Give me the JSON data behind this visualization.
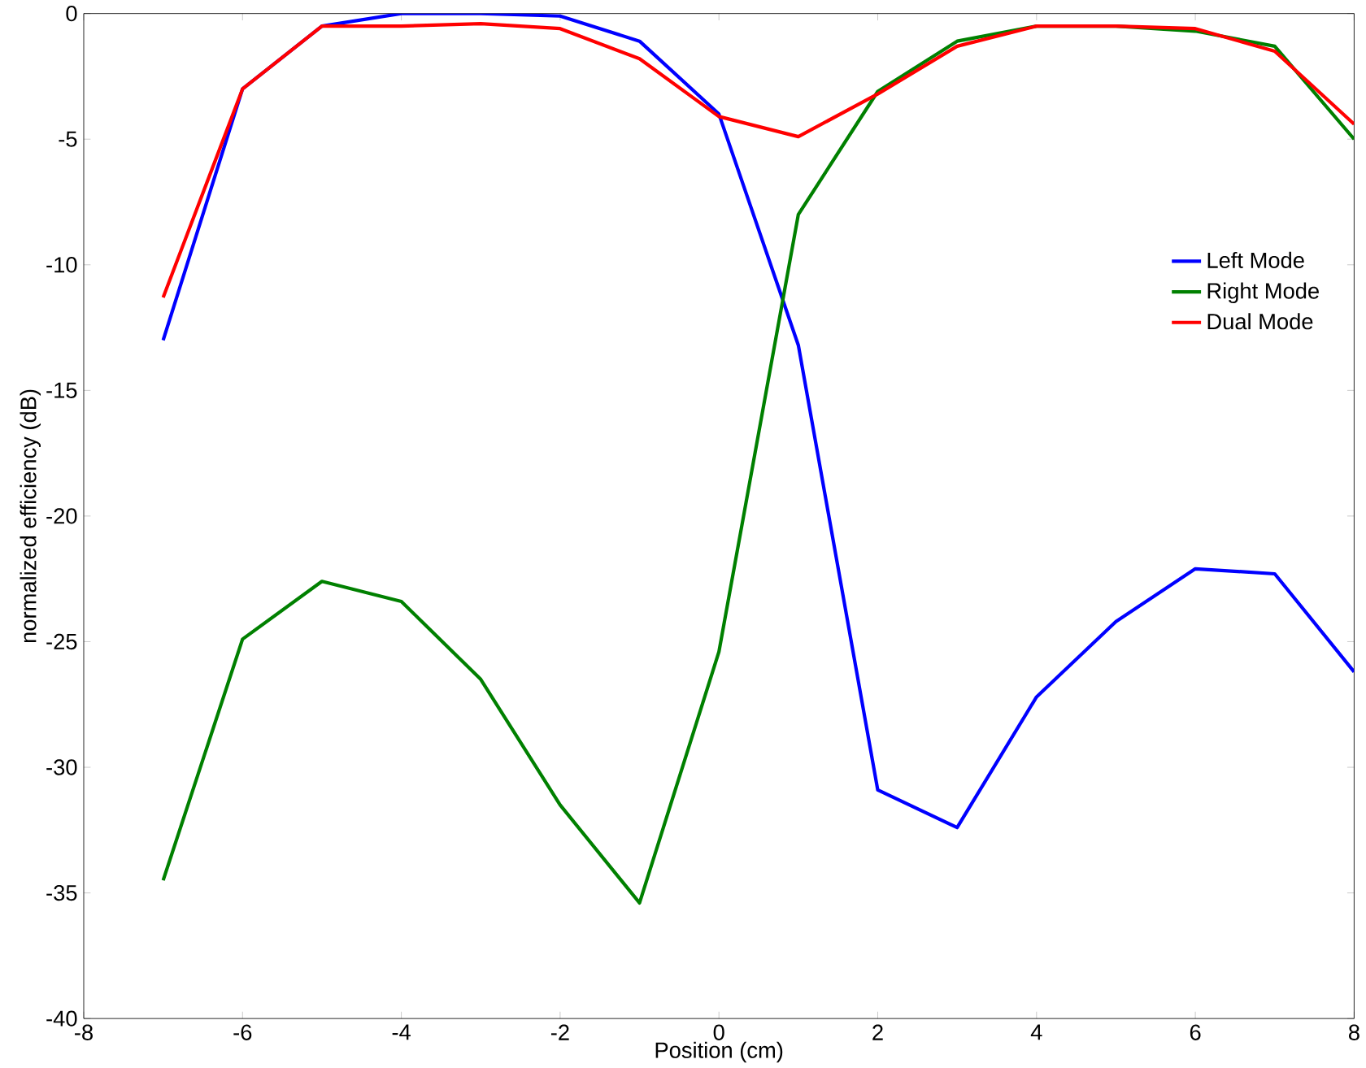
{
  "chart_data": {
    "type": "line",
    "xlabel": "Position (cm)",
    "ylabel": "normalized efficiency (dB)",
    "x": [
      -7,
      -6,
      -5,
      -4,
      -3,
      -2,
      -1,
      0,
      1,
      2,
      3,
      4,
      5,
      6,
      7,
      8
    ],
    "series": [
      {
        "name": "Left Mode",
        "color": "#0000ff",
        "values": [
          -13.0,
          -3.0,
          -0.5,
          0,
          0,
          -0.1,
          -1.1,
          -4.0,
          -13.2,
          -30.9,
          -32.4,
          -27.2,
          -24.2,
          -22.1,
          -22.3,
          -26.2
        ]
      },
      {
        "name": "Right Mode",
        "color": "#008000",
        "values": [
          -34.5,
          -24.9,
          -22.6,
          -23.4,
          -26.5,
          -31.5,
          -35.4,
          -25.4,
          -8.0,
          -3.1,
          -1.1,
          -0.5,
          -0.5,
          -0.7,
          -1.3,
          -5.0
        ]
      },
      {
        "name": "Dual Mode",
        "color": "#ff0000",
        "values": [
          -11.3,
          -3.0,
          -0.5,
          -0.5,
          -0.4,
          -0.6,
          -1.8,
          -4.1,
          -4.9,
          -3.2,
          -1.3,
          -0.5,
          -0.5,
          -0.6,
          -1.5,
          -4.4
        ]
      }
    ],
    "xlim": [
      -8,
      8
    ],
    "xticks": [
      -8,
      -6,
      -4,
      -2,
      0,
      2,
      4,
      6,
      8
    ],
    "ylim": [
      -40,
      0
    ],
    "yticks": [
      -40,
      -35,
      -30,
      -25,
      -20,
      -15,
      -10,
      -5,
      0
    ],
    "grid": false,
    "legend": "right",
    "marker": "none",
    "line_style": "solid"
  }
}
